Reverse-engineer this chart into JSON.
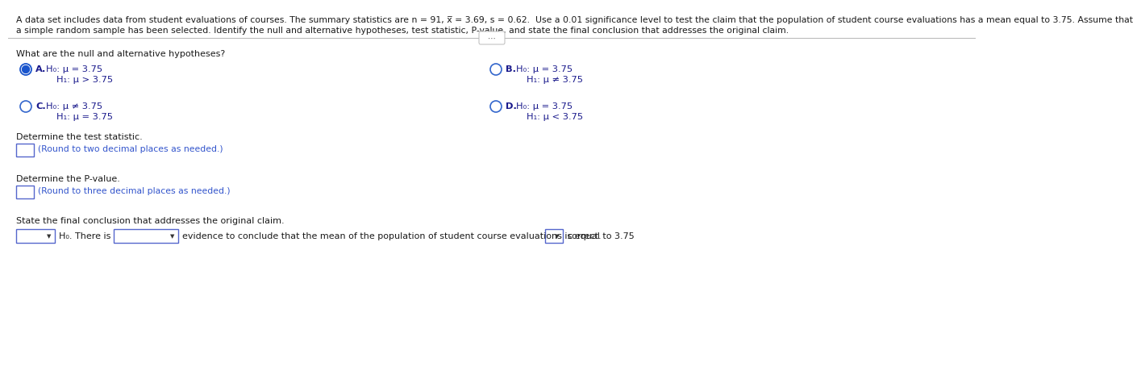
{
  "title_line1": "A data set includes data from student evaluations of courses. The summary statistics are n = 91, x̅ = 3.69, s = 0.62.  Use a 0.01 significance level to test the claim that the population of student course evaluations has a mean equal to 3.75. Assume that",
  "title_line2": "a simple random sample has been selected. Identify the null and alternative hypotheses, test statistic, P-value, and state the final conclusion that addresses the original claim.",
  "question1": "What are the null and alternative hypotheses?",
  "optA_label": "A.",
  "optA_line1": "H₀: μ = 3.75",
  "optA_line2": "H₁: μ > 3.75",
  "optB_label": "B.",
  "optB_line1": "H₀: μ = 3.75",
  "optB_line2": "H₁: μ ≠ 3.75",
  "optC_label": "C.",
  "optC_line1": "H₀: μ ≠ 3.75",
  "optC_line2": "H₁: μ = 3.75",
  "optD_label": "D.",
  "optD_line1": "H₀: μ = 3.75",
  "optD_line2": "H₁: μ < 3.75",
  "q2_label": "Determine the test statistic.",
  "q2_hint": "(Round to two decimal places as needed.)",
  "q3_label": "Determine the P-value.",
  "q3_hint": "(Round to three decimal places as needed.)",
  "q4_label": "State the final conclusion that addresses the original claim.",
  "conclusion_mid": "H₀. There is",
  "conclusion_text": "evidence to conclude that the mean of the population of student course evaluations is equal to 3.75",
  "conclusion_suffix": "correct.",
  "bg_color": "#ffffff",
  "text_color": "#1a1a1a",
  "option_text_color": "#1a1a8c",
  "hint_color": "#3355cc",
  "radio_fill_color": "#1a55cc",
  "radio_border_color": "#3366cc",
  "divider_color": "#bbbbbb",
  "box_border_color": "#5566cc",
  "normal_label_color": "#2233aa"
}
